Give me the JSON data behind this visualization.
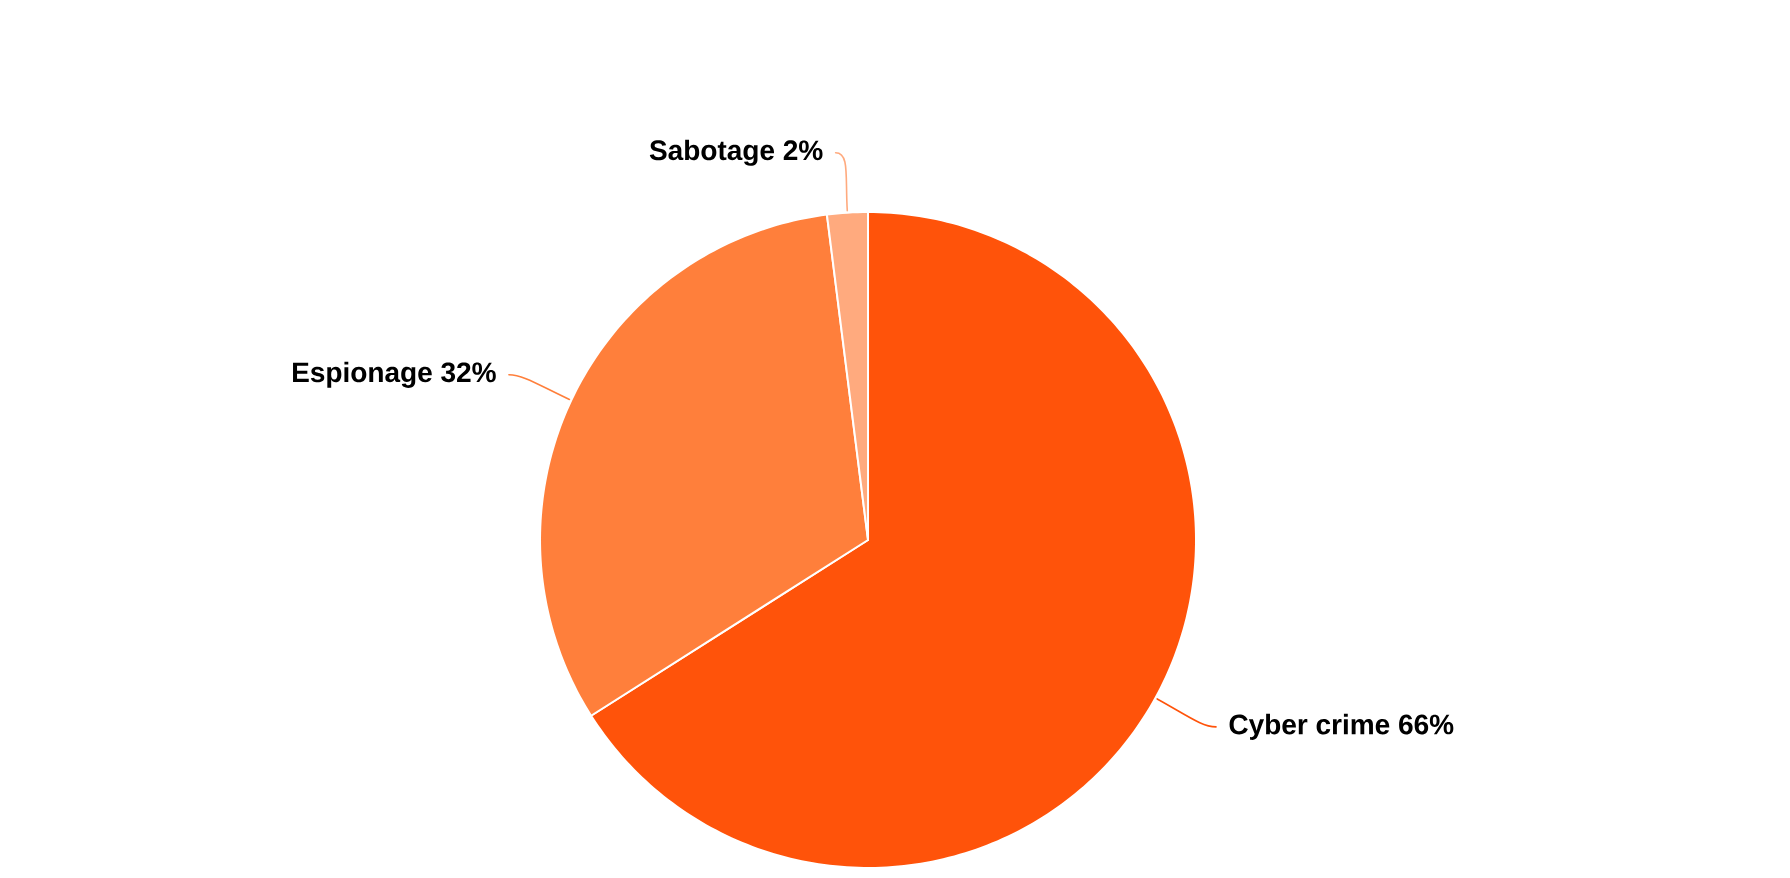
{
  "chart_data": {
    "type": "pie",
    "categories": [
      "Cyber crime",
      "Espionage",
      "Sabotage"
    ],
    "values": [
      66,
      32,
      2
    ],
    "value_labels": [
      "66%",
      "32%",
      "2%"
    ],
    "colors": [
      "#ff530a",
      "#ff7f3b",
      "#ffaa7e"
    ]
  }
}
